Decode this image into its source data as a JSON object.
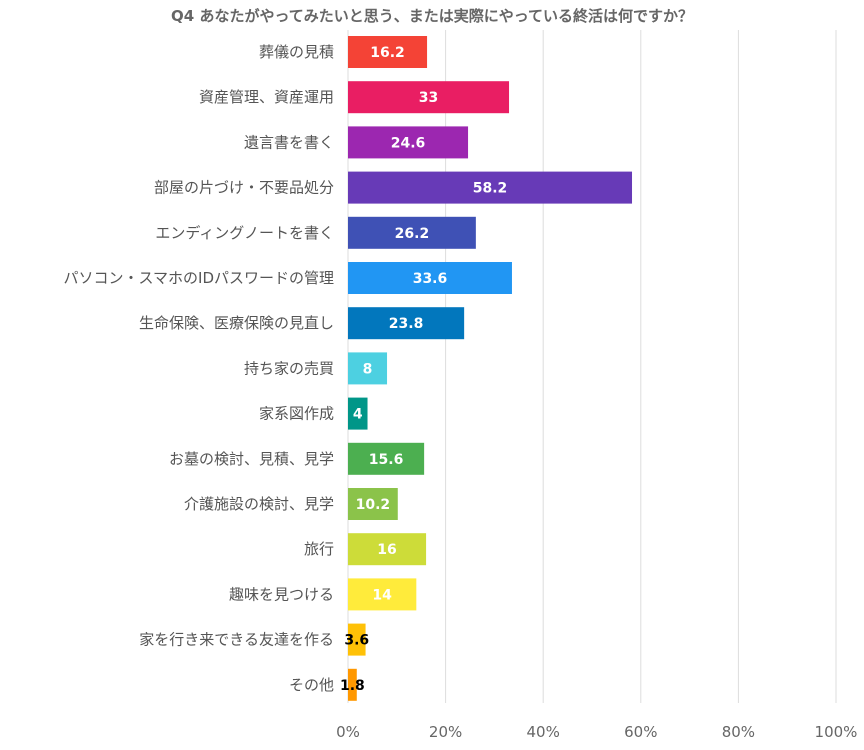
{
  "chart_data": {
    "type": "bar",
    "orientation": "horizontal",
    "title": "Q4 あなたがやってみたいと思う、または実際にやっている終活は何ですか？",
    "categories": [
      "葬儀の見積",
      "資産管理、資産運用",
      "遺言書を書く",
      "部屋の片づけ・不要品処分",
      "エンディングノートを書く",
      "パソコン・スマホのIDパスワードの管理",
      "生命保険、医療保険の見直し",
      "持ち家の売買",
      "家系図作成",
      "お墓の検討、見積、見学",
      "介護施設の検討、見学",
      "旅行",
      "趣味を見つける",
      "家を行き来できる友達を作る",
      "その他"
    ],
    "values": [
      16.2,
      33,
      24.6,
      58.2,
      26.2,
      33.6,
      23.8,
      8,
      4,
      15.6,
      10.2,
      16,
      14,
      3.6,
      1.8
    ],
    "value_labels": [
      "16.2",
      "33",
      "24.6",
      "58.2",
      "26.2",
      "33.6",
      "23.8",
      "8",
      "4",
      "15.6",
      "10.2",
      "16",
      "14",
      "3.6",
      "1.8"
    ],
    "colors": [
      "#f44336",
      "#e91e63",
      "#9c27b0",
      "#673ab7",
      "#3f51b5",
      "#2196f3",
      "#0277bd",
      "#4dd0e1",
      "#009688",
      "#4caf50",
      "#8bc34a",
      "#cddc39",
      "#ffeb3b",
      "#ffc107",
      "#ff9800"
    ],
    "label_colors": [
      "#ffffff",
      "#ffffff",
      "#ffffff",
      "#ffffff",
      "#ffffff",
      "#ffffff",
      "#ffffff",
      "#ffffff",
      "#ffffff",
      "#ffffff",
      "#ffffff",
      "#ffffff",
      "#ffffff",
      "#000000",
      "#000000"
    ],
    "xlim": [
      0,
      100
    ],
    "xticks": [
      0,
      20,
      40,
      60,
      80,
      100
    ],
    "xtick_labels": [
      "0%",
      "20%",
      "40%",
      "60%",
      "80%",
      "100%"
    ],
    "xlabel": "",
    "ylabel": "",
    "grid": true
  }
}
